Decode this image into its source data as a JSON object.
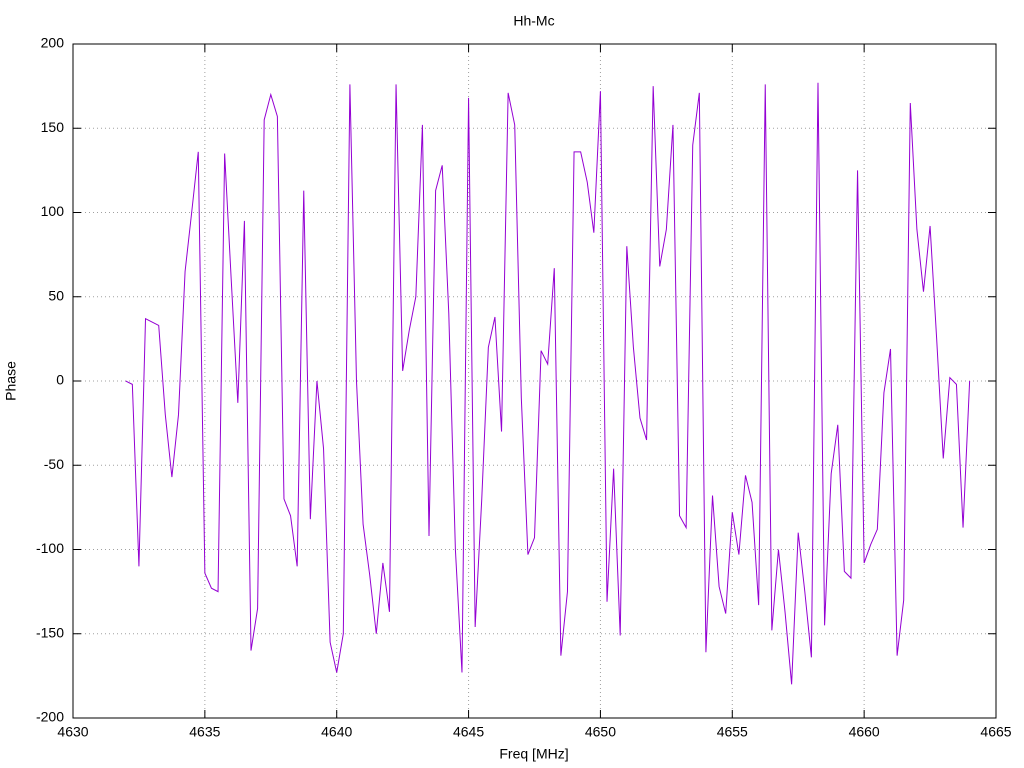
{
  "chart_data": {
    "type": "line",
    "title": "Hh-Mc",
    "xlabel": "Freq [MHz]",
    "ylabel": "Phase",
    "xlim": [
      4630,
      4665
    ],
    "xticks": [
      4630,
      4635,
      4640,
      4645,
      4650,
      4655,
      4660,
      4665
    ],
    "ylim": [
      -200,
      200
    ],
    "yticks": [
      -200,
      -150,
      -100,
      -50,
      0,
      50,
      100,
      150,
      200
    ],
    "grid": true,
    "x": [
      4632,
      4632.25,
      4632.5,
      4632.75,
      4633,
      4633.25,
      4633.5,
      4633.75,
      4634,
      4634.25,
      4634.5,
      4634.75,
      4635,
      4635.25,
      4635.5,
      4635.75,
      4636,
      4636.25,
      4636.5,
      4636.75,
      4637,
      4637.25,
      4637.5,
      4637.75,
      4638,
      4638.25,
      4638.5,
      4638.75,
      4639,
      4639.25,
      4639.5,
      4639.75,
      4640,
      4640.25,
      4640.5,
      4640.75,
      4641,
      4641.25,
      4641.5,
      4641.75,
      4642,
      4642.25,
      4642.5,
      4642.75,
      4643,
      4643.25,
      4643.5,
      4643.75,
      4644,
      4644.25,
      4644.5,
      4644.75,
      4645,
      4645.25,
      4645.5,
      4645.75,
      4646,
      4646.25,
      4646.5,
      4646.75,
      4647,
      4647.25,
      4647.5,
      4647.75,
      4648,
      4648.25,
      4648.5,
      4648.75,
      4649,
      4649.25,
      4649.5,
      4649.75,
      4650,
      4650.25,
      4650.5,
      4650.75,
      4651,
      4651.25,
      4651.5,
      4651.75,
      4652,
      4652.25,
      4652.5,
      4652.75,
      4653,
      4653.25,
      4653.5,
      4653.75,
      4654,
      4654.25,
      4654.5,
      4654.75,
      4655,
      4655.25,
      4655.5,
      4655.75,
      4656,
      4656.25,
      4656.5,
      4656.75,
      4657,
      4657.25,
      4657.5,
      4657.75,
      4658,
      4658.25,
      4658.5,
      4658.75,
      4659,
      4659.25,
      4659.5,
      4659.75,
      4660,
      4660.25,
      4660.5,
      4660.75,
      4661,
      4661.25,
      4661.5,
      4661.75,
      4662,
      4662.25,
      4662.5,
      4662.75,
      4663,
      4663.25,
      4663.5,
      4663.75,
      4664
    ],
    "series": [
      {
        "color": "#9400d3",
        "values": [
          0,
          -2,
          -110,
          37,
          35,
          33,
          -20,
          -57,
          -20,
          65,
          100,
          136,
          -114,
          -123,
          -125,
          135,
          60,
          -13,
          95,
          -160,
          -135,
          155,
          170,
          157,
          -70,
          -80,
          -110,
          113,
          -82,
          0,
          -40,
          -155,
          -173,
          -150,
          176,
          0,
          -85,
          -115,
          -150,
          -108,
          -137,
          176,
          6,
          30,
          50,
          152,
          -92,
          113,
          128,
          40,
          -100,
          -173,
          168,
          -146,
          -70,
          20,
          38,
          -30,
          171,
          152,
          -10,
          -103,
          -93,
          18,
          10,
          67,
          -163,
          -125,
          136,
          136,
          118,
          88,
          172,
          -131,
          -52,
          -151,
          80,
          20,
          -22,
          -35,
          175,
          68,
          90,
          152,
          -80,
          -87,
          140,
          171,
          -161,
          -68,
          -122,
          -138,
          -78,
          -103,
          -56,
          -72,
          -133,
          176,
          -148,
          -100,
          -137,
          -180,
          -90,
          -125,
          -164,
          177,
          -145,
          -55,
          -26,
          -113,
          -117,
          125,
          -108,
          -97,
          -88,
          -7,
          19,
          -163,
          -130,
          165,
          90,
          53,
          92,
          25,
          -46,
          2,
          -2,
          -87,
          0
        ]
      }
    ]
  }
}
